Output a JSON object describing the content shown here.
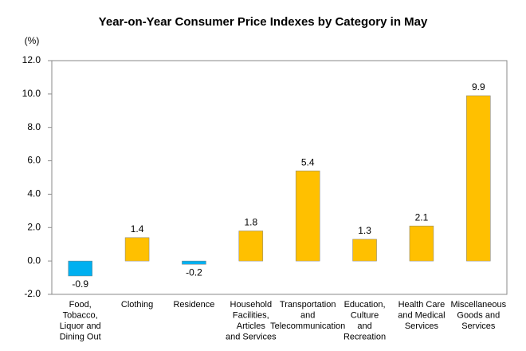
{
  "chart_data": {
    "type": "bar",
    "title": "Year-on-Year Consumer Price Indexes by Category in May",
    "y_label": "(%)",
    "categories": [
      [
        "Food,",
        "Tobacco,",
        "Liquor and",
        "Dining Out"
      ],
      [
        "Clothing"
      ],
      [
        "Residence"
      ],
      [
        "Household",
        "Facilities,",
        "Articles",
        "and Services"
      ],
      [
        "Transportation",
        "and",
        "Telecommunication"
      ],
      [
        "Education,",
        "Culture",
        "and",
        "Recreation"
      ],
      [
        "Health Care",
        "and Medical",
        "Services"
      ],
      [
        "Miscellaneous",
        "Goods and",
        "Services"
      ]
    ],
    "values": [
      -0.9,
      1.4,
      -0.2,
      1.8,
      5.4,
      1.3,
      2.1,
      9.9
    ],
    "color": "#ffc000",
    "negative_color": "#00b0f0",
    "ylim": [
      -2,
      12
    ],
    "yticks": [
      {
        "value": -2,
        "label": "-2.0"
      },
      {
        "value": 0,
        "label": "0.0"
      },
      {
        "value": 2,
        "label": "2.0"
      },
      {
        "value": 4,
        "label": "4.0"
      },
      {
        "value": 6,
        "label": "6.0"
      },
      {
        "value": 8,
        "label": "8.0"
      },
      {
        "value": 10,
        "label": "10.0"
      },
      {
        "value": 12,
        "label": "12.0"
      }
    ],
    "grid": false
  }
}
